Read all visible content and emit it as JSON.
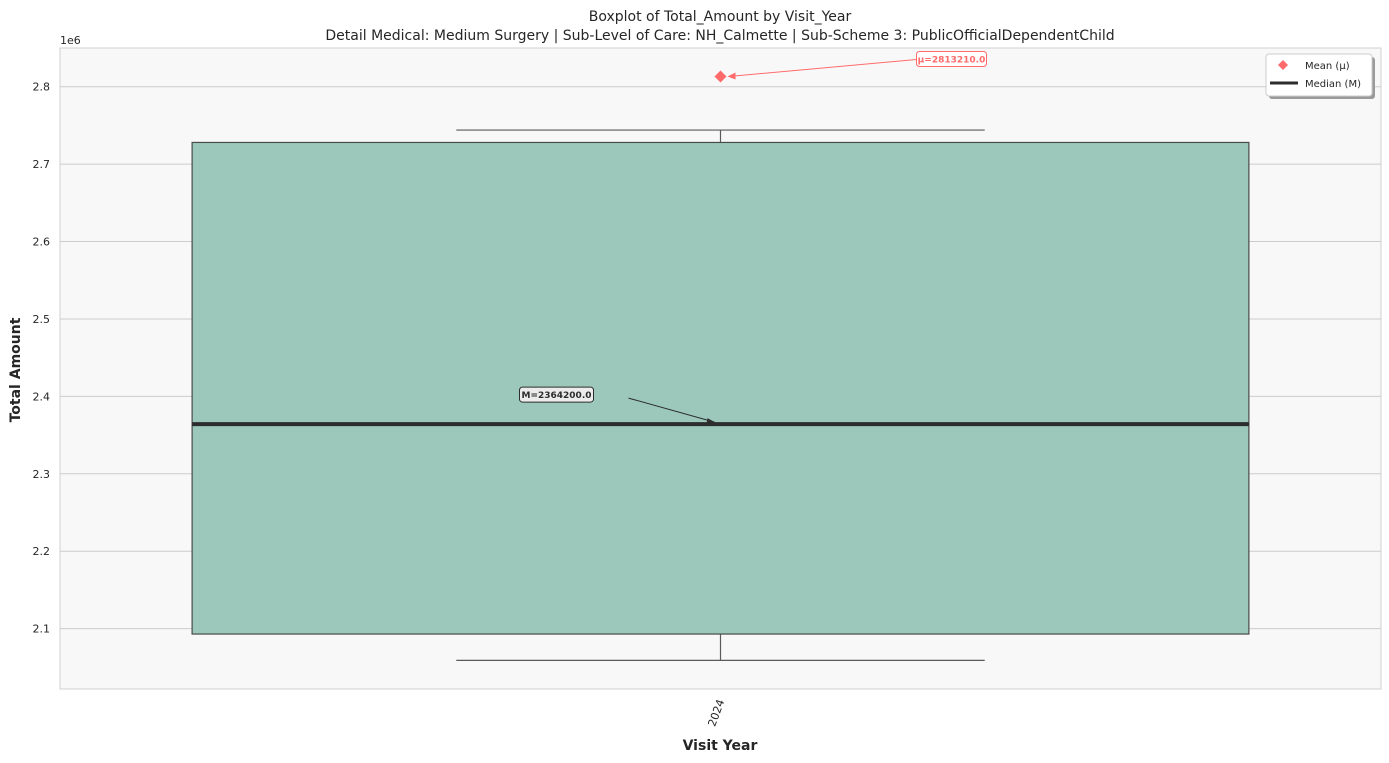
{
  "chart_data": {
    "type": "boxplot",
    "title": "Boxplot of Total_Amount by Visit_Year",
    "subtitle": "Detail Medical: Medium Surgery | Sub-Level of Care: NH_Calmette | Sub-Scheme 3: PublicOfficialDependentChild",
    "xlabel": "Visit Year",
    "ylabel": "Total Amount",
    "y_multiplier_label": "1e6",
    "ylim": [
      2.022,
      2.85
    ],
    "y_ticks": [
      2.1,
      2.2,
      2.3,
      2.4,
      2.5,
      2.6,
      2.7,
      2.8
    ],
    "y_tick_labels": [
      "2.1",
      "2.2",
      "2.3",
      "2.4",
      "2.5",
      "2.6",
      "2.7",
      "2.8"
    ],
    "grid": true,
    "categories": [
      "2024"
    ],
    "boxes": [
      {
        "category": "2024",
        "whisker_low": 2.059,
        "q1": 2.093,
        "median": 2.3642,
        "q3": 2.728,
        "whisker_high": 2.744,
        "mean": 2.81321
      }
    ],
    "annotations": {
      "mean_label": "μ=2813210.0",
      "median_label": "M=2364200.0"
    },
    "legend": {
      "position": "top-right",
      "entries": [
        {
          "label": "Mean (μ)",
          "marker": "diamond"
        },
        {
          "label": "Median (M)",
          "marker": "line"
        }
      ]
    },
    "colors": {
      "box_fill": "#9bc8bb",
      "box_edge": "#4a4a4a",
      "median_line": "#2d2d2d",
      "mean_marker": "#ff6b6b",
      "plot_background": "#f8f8f8",
      "grid": "#cccccc"
    }
  }
}
